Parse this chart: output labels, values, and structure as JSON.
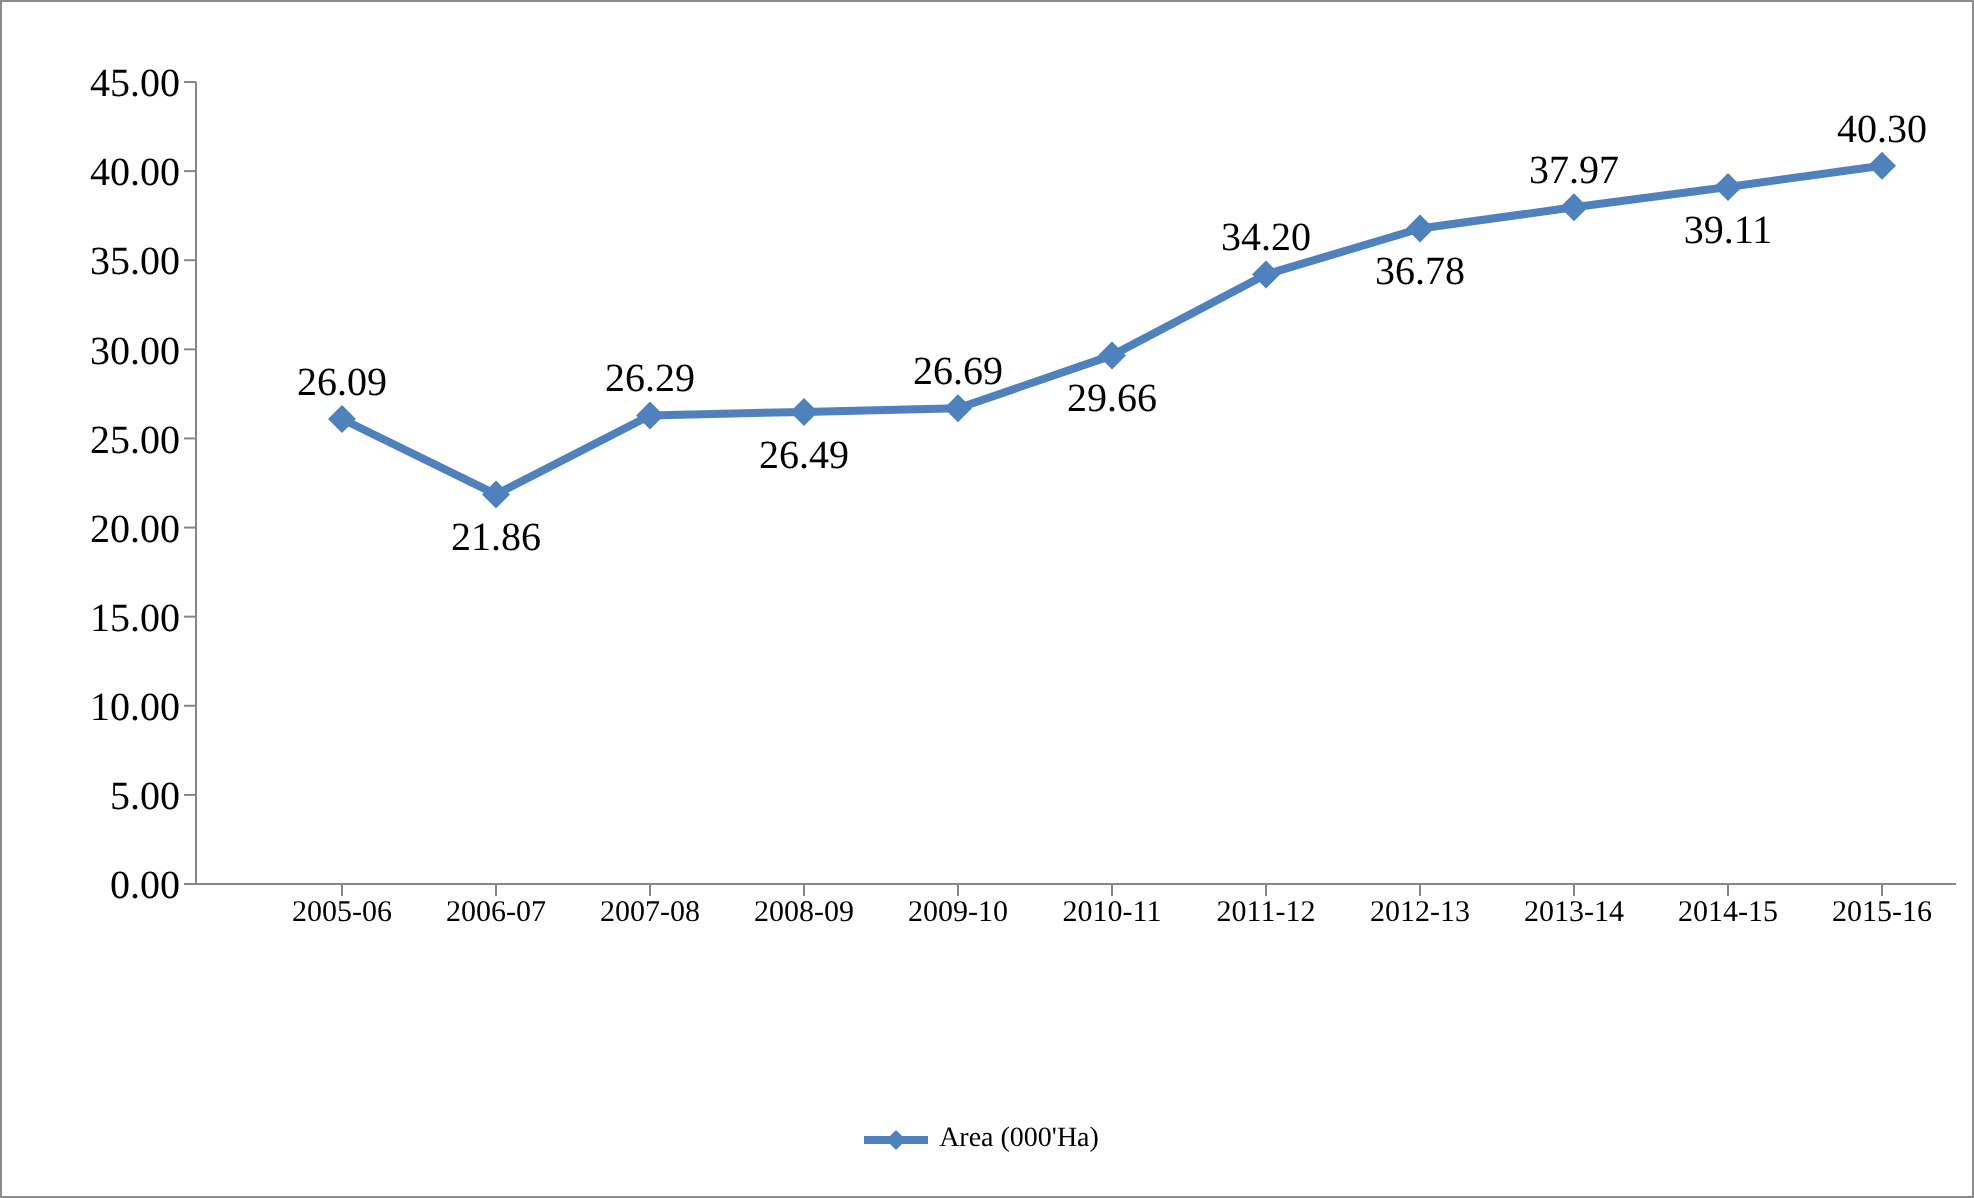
{
  "chart_data": {
    "type": "line",
    "categories": [
      "2005-06",
      "2006-07",
      "2007-08",
      "2008-09",
      "2009-10",
      "2010-11",
      "2011-12",
      "2012-13",
      "2013-14",
      "2014-15",
      "2015-16"
    ],
    "series": [
      {
        "name": "Area (000'Ha)",
        "color": "#4f81bd",
        "values": [
          26.09,
          21.86,
          26.29,
          26.49,
          26.69,
          29.66,
          34.2,
          36.78,
          37.97,
          39.11,
          40.3
        ],
        "value_labels": [
          "26.09",
          "21.86",
          "26.29",
          "26.49",
          "26.69",
          "29.66",
          "34.20",
          "36.78",
          "37.97",
          "39.11",
          "40.30"
        ]
      }
    ],
    "ylim": [
      0,
      45
    ],
    "yticks": [
      {
        "value": 0,
        "label": "0.00"
      },
      {
        "value": 5,
        "label": "5.00"
      },
      {
        "value": 10,
        "label": "10.00"
      },
      {
        "value": 15,
        "label": "15.00"
      },
      {
        "value": 20,
        "label": "20.00"
      },
      {
        "value": 25,
        "label": "25.00"
      },
      {
        "value": 30,
        "label": "30.00"
      },
      {
        "value": 35,
        "label": "35.00"
      },
      {
        "value": 40,
        "label": "40.00"
      },
      {
        "value": 45,
        "label": "45.00"
      }
    ],
    "grid": false,
    "legend": "bottom",
    "marker": "diamond",
    "line_style": "solid"
  }
}
